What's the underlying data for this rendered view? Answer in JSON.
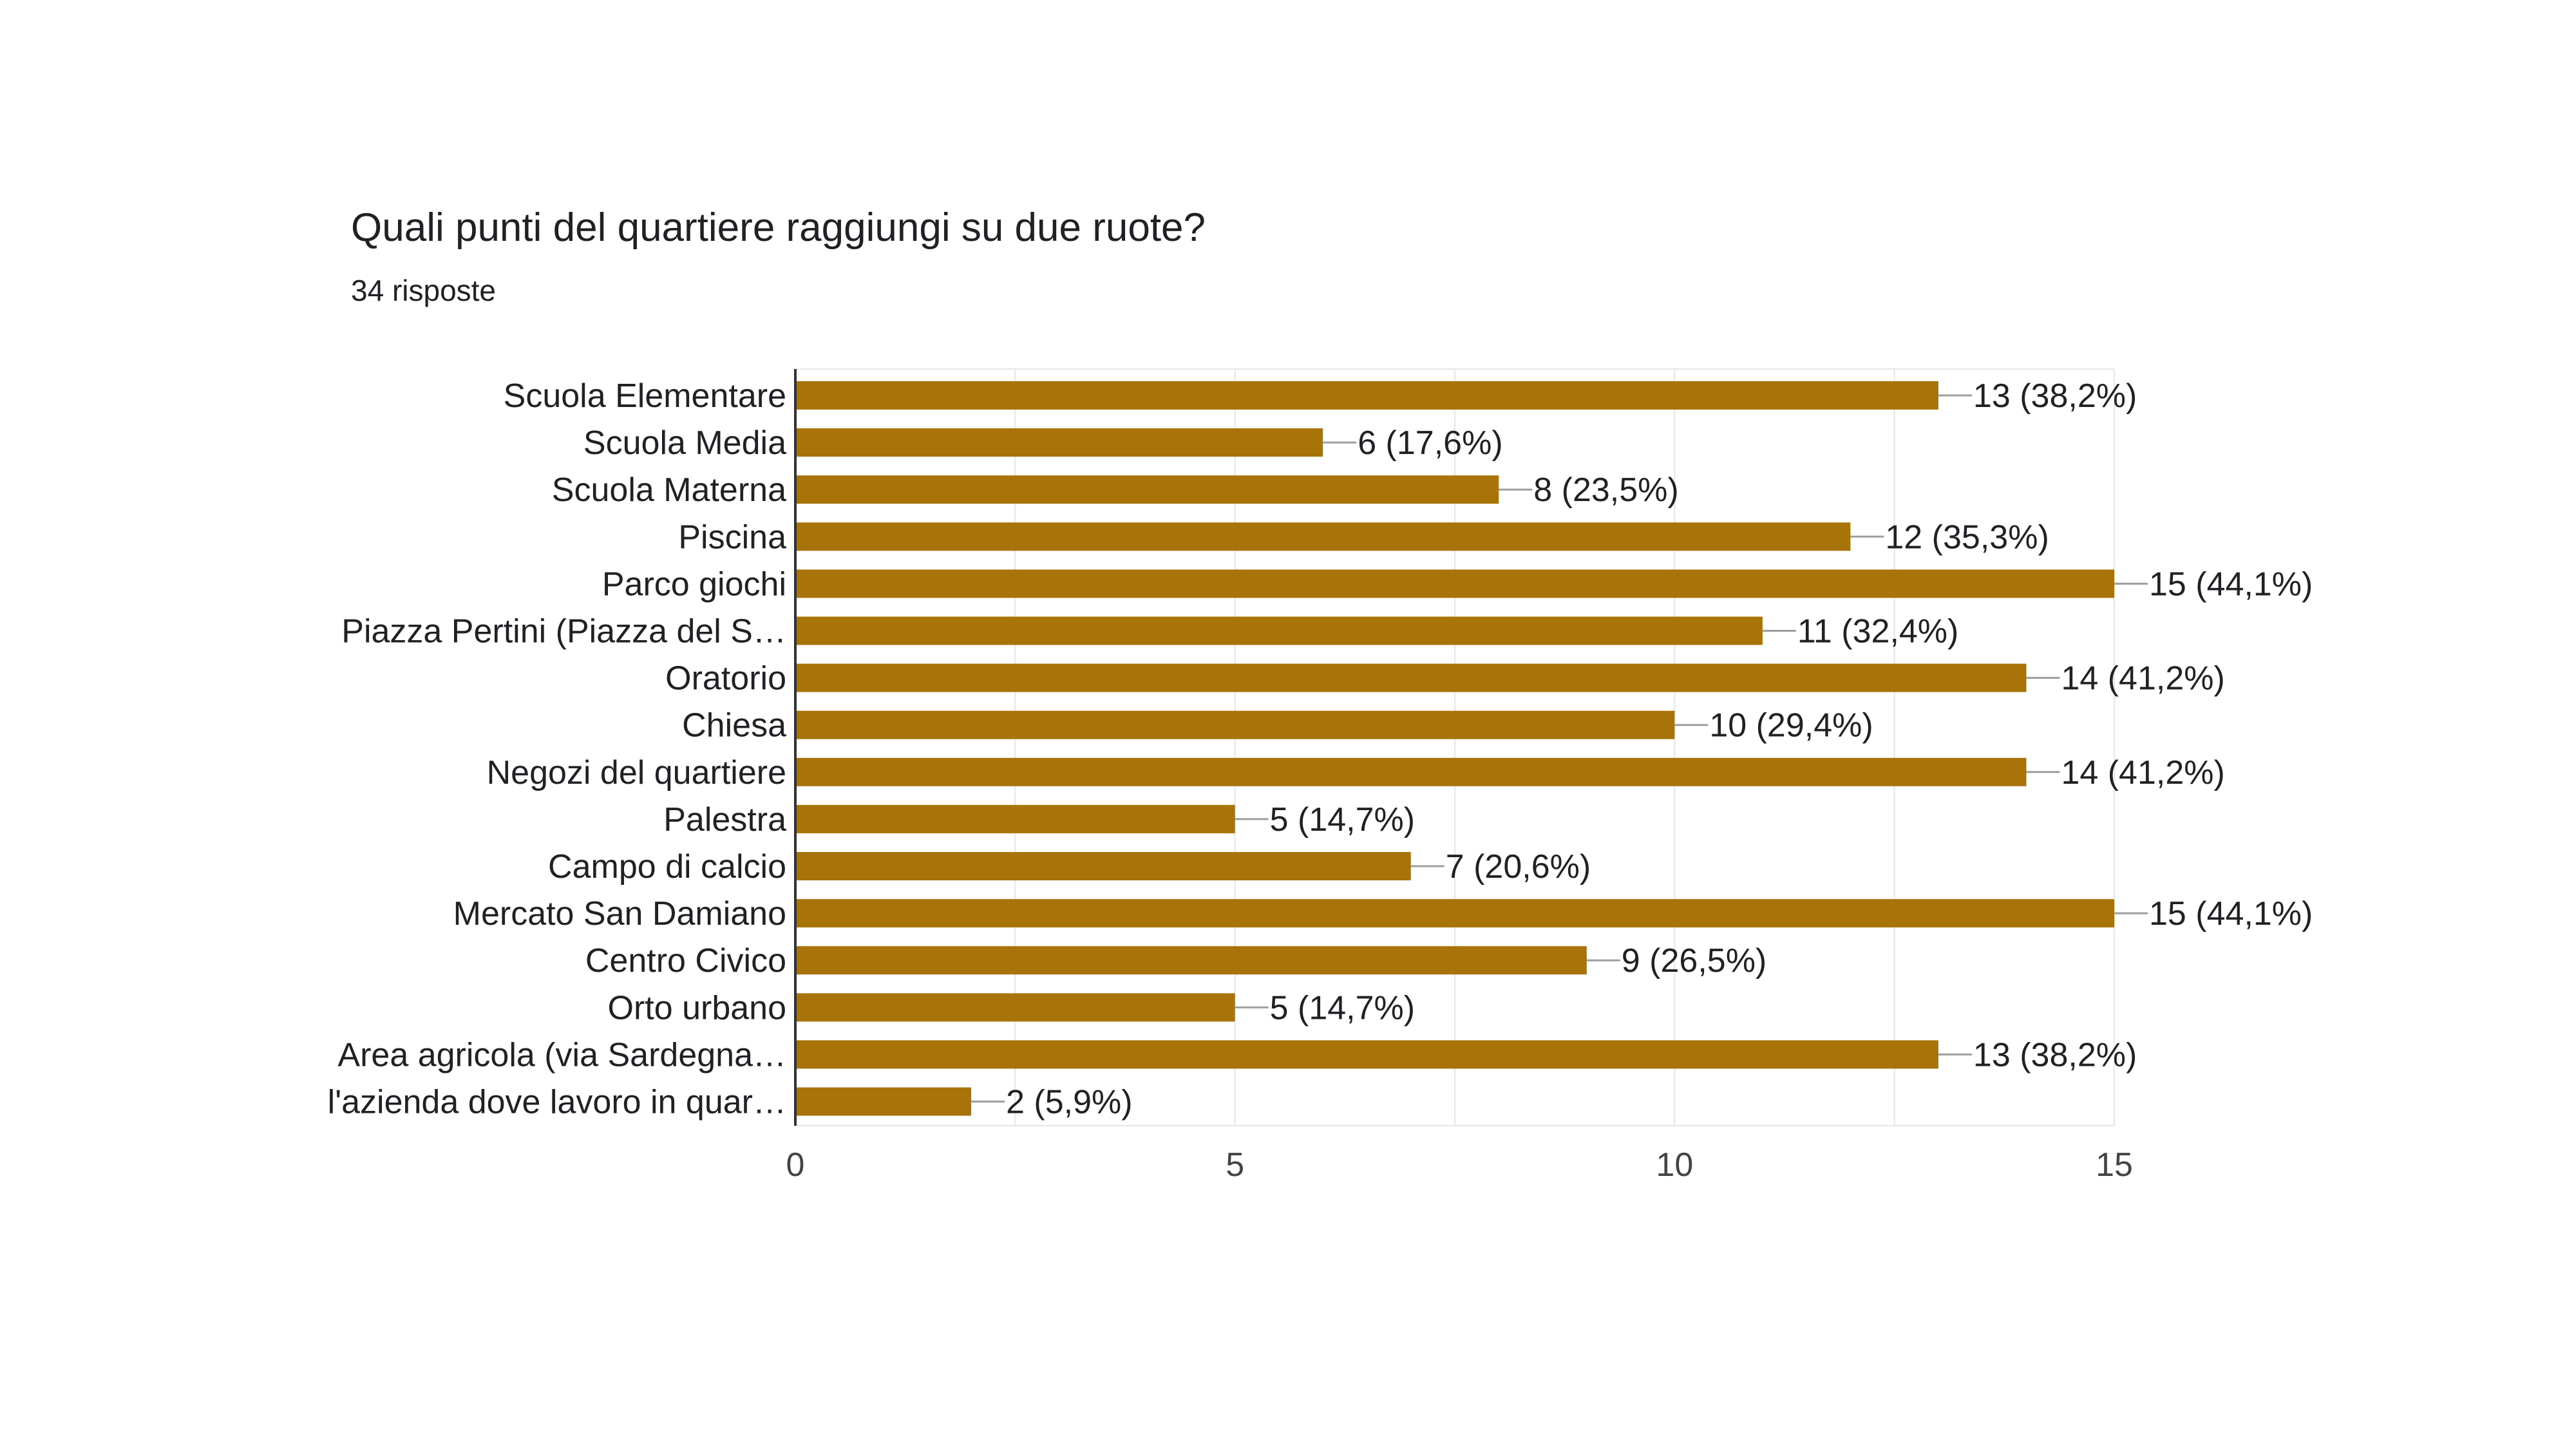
{
  "form_question": {
    "title": "Quali punti del quartiere raggiungi su due ruote?",
    "responses_label": "34 risposte"
  },
  "colors": {
    "bar": "#a87309",
    "text": "#202124",
    "axis": "#333333",
    "grid": "#e6e6e6",
    "leader": "#9e9e9e"
  },
  "chart_data": {
    "type": "bar",
    "orientation": "horizontal",
    "categories": [
      "Scuola Elementare",
      "Scuola Media",
      "Scuola Materna",
      "Piscina",
      "Parco giochi",
      "Piazza Pertini (Piazza del S…",
      "Oratorio",
      "Chiesa",
      "Negozi del quartiere",
      "Palestra",
      "Campo di calcio",
      "Mercato San Damiano",
      "Centro Civico",
      "Orto urbano",
      "Area agricola (via Sardegna…",
      "l'azienda dove lavoro in quar…"
    ],
    "values": [
      13,
      6,
      8,
      12,
      15,
      11,
      14,
      10,
      14,
      5,
      7,
      15,
      9,
      5,
      13,
      2
    ],
    "data_labels": [
      "13 (38,2%)",
      "6 (17,6%)",
      "8 (23,5%)",
      "12 (35,3%)",
      "15 (44,1%)",
      "11 (32,4%)",
      "14 (41,2%)",
      "10 (29,4%)",
      "14 (41,2%)",
      "5 (14,7%)",
      "7 (20,6%)",
      "15 (44,1%)",
      "9 (26,5%)",
      "5 (14,7%)",
      "13 (38,2%)",
      "2 (5,9%)"
    ],
    "xlim": [
      0,
      15
    ],
    "xticks": [
      0,
      5,
      10,
      15
    ],
    "grid": true
  }
}
